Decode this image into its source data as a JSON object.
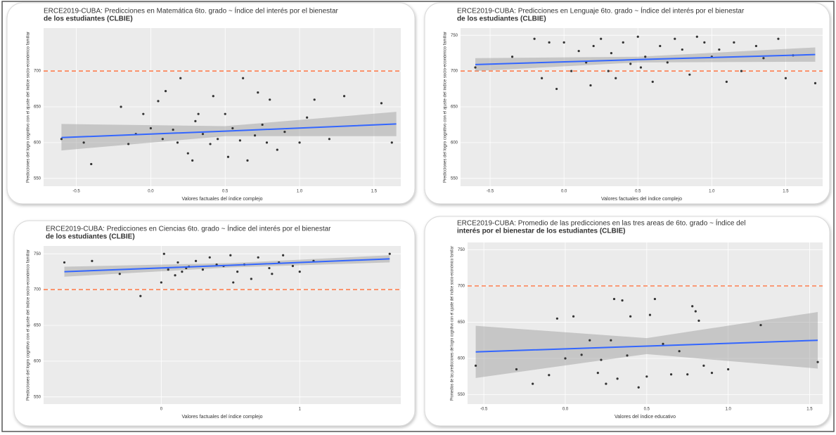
{
  "chart_data": [
    {
      "type": "scatter",
      "title": "ERCE2019-CUBA: Predicciones en Matemática 6to. grado ~ Índice del interés por el bienestar",
      "subtitle": "de los estudiantes (CLBIE)",
      "x_label": "Valores factuales del índice complejo",
      "y_label": "Predicciones del logro cognitivo con el ajuste del índice socio-económico familiar",
      "x": [
        -0.6,
        -0.45,
        -0.4,
        -0.2,
        -0.15,
        -0.1,
        -0.05,
        0.0,
        0.05,
        0.08,
        0.1,
        0.15,
        0.18,
        0.2,
        0.25,
        0.28,
        0.3,
        0.32,
        0.35,
        0.4,
        0.42,
        0.45,
        0.5,
        0.52,
        0.55,
        0.6,
        0.62,
        0.65,
        0.7,
        0.72,
        0.75,
        0.78,
        0.8,
        0.85,
        0.9,
        1.0,
        1.05,
        1.1,
        1.2,
        1.3,
        1.55,
        1.62
      ],
      "values": [
        605,
        600,
        570,
        650,
        598,
        612,
        640,
        620,
        658,
        605,
        672,
        618,
        600,
        690,
        585,
        575,
        630,
        640,
        612,
        598,
        665,
        605,
        640,
        580,
        620,
        603,
        690,
        575,
        610,
        670,
        625,
        600,
        660,
        590,
        615,
        600,
        635,
        660,
        605,
        665,
        655,
        600
      ],
      "color": "#333333",
      "fit": {
        "x": [
          -0.6,
          0.5,
          1.65
        ],
        "y": [
          607,
          616,
          626
        ],
        "lower": [
          589,
          609,
          609
        ],
        "upper": [
          626,
          623,
          643
        ],
        "color": "#3366ff",
        "band_color": "#999999"
      },
      "hline": 700,
      "hline_color": "#ff7f50",
      "xlim": [
        -0.72,
        1.68
      ],
      "ylim": [
        539,
        760
      ],
      "xticks": [
        -0.5,
        {
          "value": 0,
          "label": "0.0"
        },
        0.5,
        {
          "value": 1,
          "label": "1.0"
        },
        1.5
      ],
      "yticks": [
        550,
        600,
        650,
        700
      ],
      "grid": true
    },
    {
      "type": "scatter",
      "title": "ERCE2019-CUBA: Predicciones en Lenguaje 6to. grado ~ Índice del interés por el bienestar",
      "subtitle": "de los estudiantes (CLBIE)",
      "x_label": "Valores factuales del índice complejo",
      "y_label": "Predicciones del logro cognitivo con el ajuste del índice socio-económico familiar",
      "x": [
        -0.6,
        -0.35,
        -0.2,
        -0.15,
        -0.1,
        -0.05,
        0.0,
        0.05,
        0.1,
        0.15,
        0.18,
        0.2,
        0.25,
        0.3,
        0.32,
        0.35,
        0.4,
        0.45,
        0.5,
        0.52,
        0.55,
        0.6,
        0.65,
        0.7,
        0.75,
        0.8,
        0.85,
        0.9,
        0.95,
        1.0,
        1.05,
        1.1,
        1.15,
        1.2,
        1.3,
        1.35,
        1.45,
        1.5,
        1.55,
        1.7
      ],
      "values": [
        705,
        720,
        745,
        690,
        740,
        675,
        740,
        700,
        728,
        712,
        680,
        735,
        745,
        700,
        725,
        690,
        740,
        710,
        748,
        705,
        720,
        685,
        735,
        712,
        745,
        730,
        695,
        748,
        740,
        720,
        730,
        685,
        740,
        700,
        735,
        718,
        745,
        690,
        722,
        683
      ],
      "color": "#333333",
      "fit": {
        "x": [
          -0.6,
          0.5,
          1.7
        ],
        "y": [
          709,
          716,
          723
        ],
        "lower": [
          700,
          712,
          713
        ],
        "upper": [
          718,
          720,
          733
        ],
        "color": "#3366ff",
        "band_color": "#999999"
      },
      "hline": 700,
      "hline_color": "#ff7f50",
      "xlim": [
        -0.7,
        1.75
      ],
      "ylim": [
        539,
        760
      ],
      "xticks": [
        -0.5,
        {
          "value": 0,
          "label": "0.0"
        },
        0.5,
        {
          "value": 1,
          "label": "1.0"
        },
        1.5
      ],
      "yticks": [
        550,
        600,
        650,
        700,
        750
      ],
      "grid": true
    },
    {
      "type": "scatter",
      "title": "ERCE2019-CUBA: Predicciones en Ciencias 6to. grado ~ Índice del interés por el bienestar",
      "subtitle": "de los estudiantes (CLBIE)",
      "x_label": "Valores factuales del índice complejo",
      "y_label": "Predicciones del logro cognitivo con el ajuste del índice socio-económico familiar",
      "x": [
        -0.7,
        -0.5,
        -0.3,
        -0.15,
        0.0,
        0.02,
        0.05,
        0.1,
        0.12,
        0.15,
        0.18,
        0.2,
        0.25,
        0.3,
        0.35,
        0.4,
        0.45,
        0.5,
        0.52,
        0.55,
        0.6,
        0.65,
        0.7,
        0.78,
        0.8,
        0.85,
        0.88,
        0.95,
        1.0,
        1.1,
        1.65
      ],
      "values": [
        738,
        740,
        722,
        691,
        710,
        750,
        728,
        720,
        738,
        725,
        730,
        732,
        740,
        728,
        745,
        735,
        733,
        748,
        710,
        725,
        735,
        715,
        745,
        730,
        722,
        738,
        748,
        733,
        725,
        740,
        750
      ],
      "color": "#333333",
      "fit": {
        "x": [
          -0.7,
          0.5,
          1.65
        ],
        "y": [
          725,
          734,
          743
        ],
        "lower": [
          718,
          731,
          738
        ],
        "upper": [
          732,
          737,
          748
        ],
        "color": "#3366ff",
        "band_color": "#999999"
      },
      "hline": 700,
      "hline_color": "#ff7f50",
      "xlim": [
        -0.85,
        1.73
      ],
      "ylim": [
        540,
        761
      ],
      "xticks": [
        0,
        1
      ],
      "yticks": [
        550,
        600,
        650,
        700,
        750
      ],
      "grid": true
    },
    {
      "type": "scatter",
      "title": "ERCE2019-CUBA: Promedio de las predicciones en las tres areas de 6to. grado ~ Índice del",
      "subtitle": "interés por el bienestar de los estudiantes (CLBIE)",
      "x_label": "Valores del índice educativo",
      "y_label": "Promedios de las predicciones del logro cognitivo con el ajuste del índice socio-económico familiar",
      "x": [
        -0.55,
        -0.3,
        -0.2,
        -0.1,
        -0.05,
        0.0,
        0.05,
        0.1,
        0.15,
        0.2,
        0.22,
        0.25,
        0.28,
        0.3,
        0.32,
        0.35,
        0.38,
        0.4,
        0.45,
        0.5,
        0.52,
        0.55,
        0.6,
        0.65,
        0.7,
        0.75,
        0.78,
        0.8,
        0.82,
        0.85,
        0.9,
        1.0,
        1.2,
        1.55
      ],
      "values": [
        590,
        585,
        565,
        577,
        655,
        600,
        658,
        605,
        625,
        580,
        598,
        565,
        625,
        682,
        572,
        680,
        604,
        658,
        560,
        575,
        660,
        682,
        620,
        578,
        610,
        578,
        672,
        665,
        652,
        590,
        580,
        585,
        646,
        595
      ],
      "color": "#333333",
      "fit": {
        "x": [
          -0.55,
          0.5,
          1.55
        ],
        "y": [
          609,
          617,
          625
        ],
        "lower": [
          573,
          606,
          586
        ],
        "upper": [
          645,
          628,
          664
        ],
        "color": "#3366ff",
        "band_color": "#999999"
      },
      "hline": 700,
      "hline_color": "#ff7f50",
      "xlim": [
        -0.6,
        1.58
      ],
      "ylim": [
        537,
        760
      ],
      "xticks": [
        -0.5,
        {
          "value": 0,
          "label": "0.0"
        },
        0.5,
        {
          "value": 1,
          "label": "1.0"
        },
        1.5
      ],
      "yticks": [
        550,
        600,
        650,
        700,
        750
      ],
      "grid": true
    }
  ]
}
